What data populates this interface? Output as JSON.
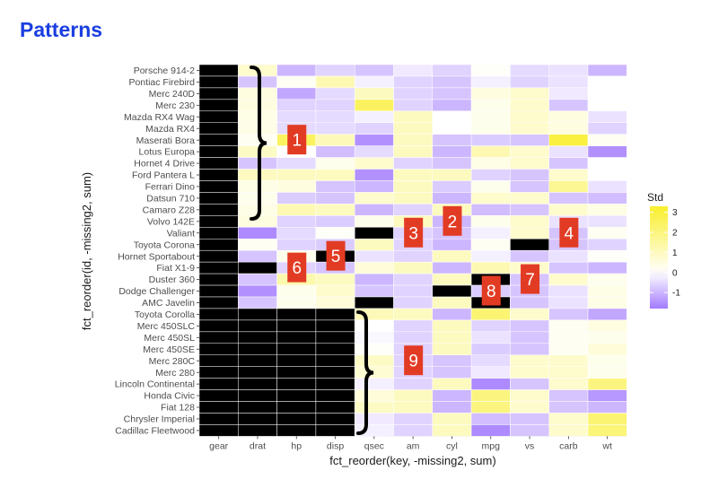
{
  "header": {
    "title": "Patterns"
  },
  "chart_data": {
    "type": "heatmap",
    "xlabel": "fct_reorder(key, -missing2, sum)",
    "ylabel": "fct_reorder(id, -missing2, sum)",
    "x": [
      "gear",
      "drat",
      "hp",
      "disp",
      "qsec",
      "am",
      "cyl",
      "mpg",
      "vs",
      "carb",
      "wt"
    ],
    "y": [
      "Porsche 914-2",
      "Pontiac Firebird",
      "Merc 240D",
      "Merc 230",
      "Mazda RX4 Wag",
      "Mazda RX4",
      "Maserati Bora",
      "Lotus Europa",
      "Hornet 4 Drive",
      "Ford Pantera L",
      "Ferrari Dino",
      "Datsun 710",
      "Camaro Z28",
      "Volvo 142E",
      "Valiant",
      "Toyota Corona",
      "Hornet Sportabout",
      "Fiat X1-9",
      "Duster 360",
      "Dodge Challenger",
      "AMC Javelin",
      "Toyota Corolla",
      "Merc 450SLC",
      "Merc 450SL",
      "Merc 450SE",
      "Merc 280C",
      "Merc 280",
      "Lincoln Continental",
      "Honda Civic",
      "Fiat 128",
      "Chrysler Imperial",
      "Cadillac Fleetwood"
    ],
    "values_note": "missing cells are null",
    "values": [
      [
        null,
        0.8,
        -1.0,
        -0.6,
        -0.8,
        -0.3,
        -0.6,
        0.1,
        -0.5,
        -0.4,
        -1.0
      ],
      [
        null,
        -0.8,
        0.2,
        1.2,
        -0.2,
        -0.6,
        -0.8,
        -0.2,
        -0.6,
        -0.4,
        0.0
      ],
      [
        null,
        0.5,
        -1.2,
        -0.5,
        1.0,
        -0.6,
        -0.8,
        0.5,
        0.8,
        -0.3,
        0.0
      ],
      [
        null,
        0.5,
        -0.6,
        -0.6,
        2.5,
        -0.6,
        -1.0,
        0.3,
        0.8,
        -0.8,
        0.0
      ],
      [
        null,
        0.4,
        -0.5,
        -0.5,
        -0.2,
        1.0,
        0.0,
        0.3,
        0.8,
        0.5,
        -0.4
      ],
      [
        null,
        0.4,
        -0.5,
        -0.5,
        -0.6,
        1.0,
        0.0,
        0.3,
        0.8,
        0.5,
        -0.6
      ],
      [
        null,
        0.2,
        2.5,
        1.1,
        -1.5,
        1.0,
        -0.8,
        -0.7,
        -0.8,
        3.0,
        0.2
      ],
      [
        null,
        0.9,
        0.0,
        -0.9,
        -0.5,
        1.0,
        -1.0,
        1.2,
        0.8,
        -0.4,
        -1.5
      ],
      [
        null,
        -0.8,
        -0.5,
        0.3,
        0.8,
        -0.6,
        -0.8,
        0.4,
        0.8,
        -0.8,
        0.0
      ],
      [
        null,
        1.0,
        1.0,
        1.0,
        -1.5,
        1.0,
        1.0,
        -0.6,
        -0.8,
        0.8,
        0.0
      ],
      [
        null,
        0.4,
        0.5,
        -0.8,
        -1.0,
        1.0,
        -0.7,
        0.3,
        -0.8,
        1.7,
        -0.4
      ],
      [
        null,
        0.3,
        -0.7,
        -0.8,
        0.8,
        1.0,
        -1.0,
        0.8,
        0.8,
        -0.8,
        -0.9
      ],
      [
        null,
        0.4,
        1.2,
        1.0,
        -1.0,
        -0.6,
        1.0,
        -0.9,
        -0.8,
        0.8,
        0.4
      ],
      [
        null,
        0.5,
        -0.6,
        -0.7,
        0.3,
        1.0,
        -1.0,
        0.3,
        0.8,
        -0.4,
        -0.4
      ],
      [
        null,
        -1.6,
        -0.5,
        0.1,
        null,
        -0.6,
        -0.8,
        -0.2,
        0.8,
        -0.8,
        0.2
      ],
      [
        null,
        0.2,
        -0.6,
        -0.7,
        1.0,
        -0.6,
        -1.0,
        0.2,
        null,
        -0.8,
        -0.6
      ],
      [
        null,
        -0.8,
        0.3,
        null,
        -0.4,
        -0.6,
        1.0,
        -0.2,
        -0.8,
        -0.4,
        0.1
      ],
      [
        null,
        null,
        -0.6,
        -0.8,
        0.6,
        1.0,
        -1.0,
        1.2,
        0.8,
        -0.8,
        -1.0
      ],
      [
        null,
        -0.8,
        1.3,
        1.0,
        -1.0,
        -0.6,
        1.0,
        null,
        -0.8,
        0.8,
        0.3
      ],
      [
        null,
        -1.5,
        0.3,
        0.8,
        -0.8,
        -0.6,
        null,
        -0.7,
        -0.8,
        -0.4,
        0.4
      ],
      [
        null,
        -0.8,
        0.3,
        0.6,
        null,
        -0.6,
        1.0,
        null,
        -0.8,
        -0.4,
        0.4
      ],
      [
        null,
        null,
        null,
        null,
        1.1,
        1.0,
        -1.0,
        2.2,
        0.8,
        -0.8,
        -1.2
      ],
      [
        null,
        null,
        null,
        null,
        0.0,
        -0.6,
        1.0,
        -0.6,
        -0.8,
        0.2,
        0.5
      ],
      [
        null,
        null,
        null,
        null,
        -0.1,
        -0.6,
        1.0,
        -0.4,
        -0.8,
        0.2,
        0.3
      ],
      [
        null,
        null,
        null,
        null,
        0.1,
        -0.6,
        1.0,
        -0.7,
        -0.8,
        0.2,
        0.6
      ],
      [
        null,
        null,
        null,
        null,
        0.9,
        -0.6,
        -0.8,
        -0.5,
        0.8,
        0.8,
        0.3
      ],
      [
        null,
        null,
        null,
        null,
        0.7,
        -0.6,
        -0.8,
        -0.3,
        0.8,
        0.8,
        0.3
      ],
      [
        null,
        null,
        null,
        null,
        -0.2,
        -0.6,
        1.0,
        -1.6,
        -0.8,
        0.8,
        2.0
      ],
      [
        null,
        null,
        null,
        null,
        0.6,
        1.0,
        -1.0,
        2.0,
        0.8,
        -0.8,
        -1.4
      ],
      [
        null,
        null,
        null,
        null,
        0.9,
        1.0,
        -1.0,
        2.0,
        0.8,
        -0.8,
        -1.0
      ],
      [
        null,
        null,
        null,
        null,
        -0.3,
        -0.6,
        1.0,
        -0.9,
        -0.8,
        0.8,
        2.2
      ],
      [
        null,
        null,
        null,
        null,
        -0.2,
        -0.6,
        1.0,
        -1.6,
        -0.8,
        0.8,
        2.1
      ]
    ],
    "legend": {
      "title": "Std",
      "placement": "right",
      "ticks": [
        3,
        2,
        1,
        0,
        -1
      ],
      "range": [
        -1.8,
        3.3
      ],
      "colors": {
        "low": "#a37bff",
        "mid": "#ffffff",
        "high": "#f9ef2c"
      }
    },
    "missing_color": "#000000",
    "panel_background": "#ebebeb",
    "gridlines": true,
    "annotations": [
      {
        "label": "1",
        "x": "hp",
        "y": "Maserati Bora"
      },
      {
        "label": "2",
        "x": "cyl",
        "y": "Volvo 142E"
      },
      {
        "label": "3",
        "x": "am",
        "y": "Valiant"
      },
      {
        "label": "4",
        "x": "carb",
        "y": "Valiant"
      },
      {
        "label": "5",
        "x": "disp",
        "y": "Hornet Sportabout"
      },
      {
        "label": "6",
        "x": "hp",
        "y": "Fiat X1-9"
      },
      {
        "label": "7",
        "x": "vs",
        "y": "Duster 360"
      },
      {
        "label": "8",
        "x": "mpg",
        "y": "Dodge Challenger"
      },
      {
        "label": "9",
        "x": "am",
        "y": "Merc 280C"
      }
    ],
    "marker_color": "#e23b24"
  }
}
